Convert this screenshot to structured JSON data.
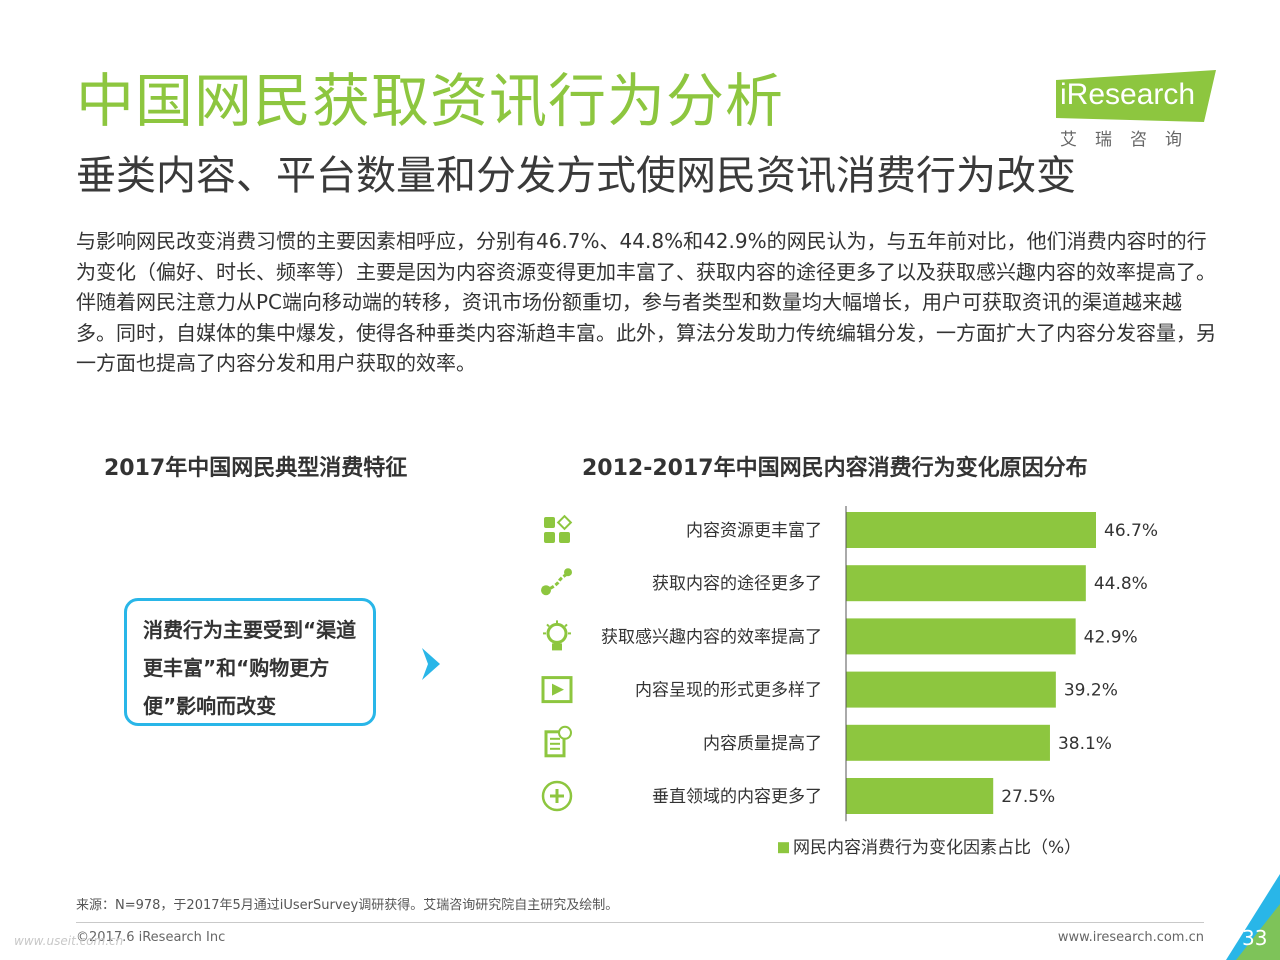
{
  "header": {
    "title": "中国网民获取资讯行为分析",
    "subtitle": "垂类内容、平台数量和分发方式使网民资讯消费行为改变"
  },
  "logo": {
    "word": "iResearch",
    "cn": "艾瑞咨询"
  },
  "paragraph": "与影响网民改变消费习惯的主要因素相呼应，分别有46.7%、44.8%和42.9%的网民认为，与五年前对比，他们消费内容时的行为变化（偏好、时长、频率等）主要是因为内容资源变得更加丰富了、获取内容的途径更多了以及获取感兴趣内容的效率提高了。伴随着网民注意力从PC端向移动端的转移，资讯市场份额重切，参与者类型和数量均大幅增长，用户可获取资讯的渠道越来越多。同时，自媒体的集中爆发，使得各种垂类内容渐趋丰富。此外，算法分发助力传统编辑分发，一方面扩大了内容分发容量，另一方面也提高了内容分发和用户获取的效率。",
  "left_panel": {
    "title": "2017年中国网民典型消费特征",
    "callout": "消费行为主要受到“渠道更丰富”和“购物更方便”影响而改变"
  },
  "colors": {
    "accent_green": "#8dc63f",
    "callout_blue": "#29b6e8"
  },
  "chart_data": {
    "type": "bar",
    "orientation": "horizontal",
    "title": "2012-2017年中国网民内容消费行为变化原因分布",
    "categories": [
      "内容资源更丰富了",
      "获取内容的途径更多了",
      "获取感兴趣内容的效率提高了",
      "内容呈现的形式更多样了",
      "内容质量提高了",
      "垂直领域的内容更多了"
    ],
    "icons": [
      "apps-icon",
      "route-icon",
      "lightbulb-icon",
      "video-icon",
      "document-check-icon",
      "plus-circle-icon"
    ],
    "series": [
      {
        "name": "网民内容消费行为变化因素占比（%）",
        "values": [
          46.7,
          44.8,
          42.9,
          39.2,
          38.1,
          27.5
        ],
        "color": "#8dc63f"
      }
    ],
    "value_labels": [
      "46.7%",
      "44.8%",
      "42.9%",
      "39.2%",
      "38.1%",
      "27.5%"
    ],
    "xlim": [
      0,
      50
    ],
    "grid": false,
    "legend_position": "bottom"
  },
  "footer": {
    "source": "来源：N=978，于2017年5月通过iUserSurvey调研获得。艾瑞咨询研究院自主研究及绘制。",
    "copyright": "©2017.6 iResearch Inc",
    "website": "www.iresearch.com.cn",
    "page": "33",
    "watermark": "www.useit.com.cn"
  }
}
